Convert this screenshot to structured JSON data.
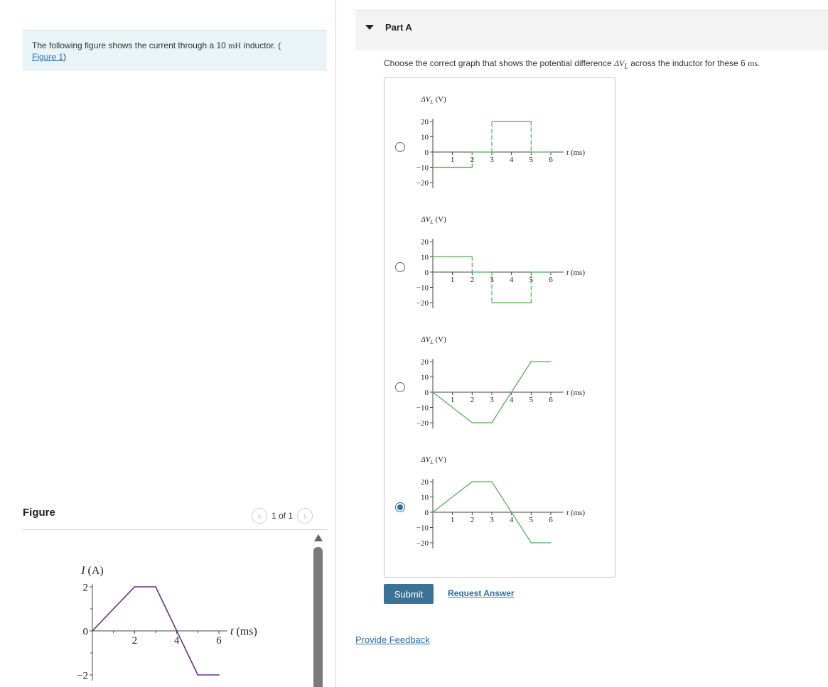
{
  "intro": {
    "text_before": "The following figure shows the current through a 10 ",
    "unit": "mH",
    "text_after": " inductor. (",
    "link": "Figure 1",
    "close": ")"
  },
  "figure": {
    "label": "Figure",
    "pager": "1 of 1",
    "prev_icon": "chevron-left-icon",
    "next_icon": "chevron-right-icon"
  },
  "part": {
    "title": "Part A",
    "question_before": "Choose the correct graph that shows the potential difference ",
    "question_symbol": "ΔV",
    "question_sub": "L",
    "question_mid": " across the inductor for these 6 ",
    "question_unit": "ms",
    "question_end": "."
  },
  "buttons": {
    "submit": "Submit",
    "request_answer": "Request Answer",
    "provide_feedback": "Provide Feedback"
  },
  "colors": {
    "current_line": "#6b2d8f",
    "option_line": "#4caf50",
    "accent": "#2a6ead",
    "submit_bg": "#3a7396"
  },
  "chart_data": [
    {
      "type": "line",
      "title": "",
      "ylabel": "I (A)",
      "xlabel": "t (ms)",
      "xlim": [
        0,
        6
      ],
      "ylim": [
        -2,
        2
      ],
      "xticks": [
        "2",
        "4",
        "6"
      ],
      "yticks": [
        "2",
        "0",
        "−2"
      ],
      "series": [
        {
          "x": [
            0,
            2,
            3,
            5,
            6
          ],
          "y": [
            0,
            2,
            2,
            -2,
            -2
          ],
          "dashed_segments": []
        }
      ]
    },
    {
      "type": "line",
      "ylabel": "ΔV",
      "ylabel_sub": "L",
      "ylabel_unit": " (V)",
      "xlabel": "t (ms)",
      "xlim": [
        0,
        6
      ],
      "ylim": [
        -20,
        20
      ],
      "xticks": [
        "1",
        "2",
        "3",
        "4",
        "5",
        "6"
      ],
      "yticks": [
        "20",
        "10",
        "0",
        "−10",
        "−20"
      ],
      "selected": false,
      "series": [
        {
          "x": [
            0,
            2,
            2,
            3,
            3,
            5,
            5,
            6
          ],
          "y": [
            -10,
            -10,
            0,
            0,
            20,
            20,
            0,
            0
          ],
          "dashed_segments": [
            1,
            3,
            5
          ]
        }
      ]
    },
    {
      "type": "line",
      "ylabel": "ΔV",
      "ylabel_sub": "L",
      "ylabel_unit": " (V)",
      "xlabel": "t (ms)",
      "xlim": [
        0,
        6
      ],
      "ylim": [
        -20,
        20
      ],
      "xticks": [
        "1",
        "2",
        "3",
        "4",
        "5",
        "6"
      ],
      "yticks": [
        "20",
        "10",
        "0",
        "−10",
        "−20"
      ],
      "selected": false,
      "series": [
        {
          "x": [
            0,
            2,
            2,
            3,
            3,
            5,
            5,
            6
          ],
          "y": [
            10,
            10,
            0,
            0,
            -20,
            -20,
            0,
            0
          ],
          "dashed_segments": [
            1,
            3,
            5
          ]
        }
      ]
    },
    {
      "type": "line",
      "ylabel": "ΔV",
      "ylabel_sub": "L",
      "ylabel_unit": " (V)",
      "xlabel": "t (ms)",
      "xlim": [
        0,
        6
      ],
      "ylim": [
        -20,
        20
      ],
      "xticks": [
        "1",
        "2",
        "3",
        "4",
        "5",
        "6"
      ],
      "yticks": [
        "20",
        "10",
        "0",
        "−10",
        "−20"
      ],
      "selected": false,
      "series": [
        {
          "x": [
            0,
            2,
            3,
            5,
            6
          ],
          "y": [
            0,
            -20,
            -20,
            20,
            20
          ],
          "dashed_segments": []
        }
      ]
    },
    {
      "type": "line",
      "ylabel": "ΔV",
      "ylabel_sub": "L",
      "ylabel_unit": " (V)",
      "xlabel": "t (ms)",
      "xlim": [
        0,
        6
      ],
      "ylim": [
        -20,
        20
      ],
      "xticks": [
        "1",
        "2",
        "3",
        "4",
        "5",
        "6"
      ],
      "yticks": [
        "20",
        "10",
        "0",
        "−10",
        "−20"
      ],
      "selected": true,
      "series": [
        {
          "x": [
            0,
            2,
            3,
            5,
            6
          ],
          "y": [
            0,
            20,
            20,
            -20,
            -20
          ],
          "dashed_segments": []
        }
      ]
    }
  ]
}
